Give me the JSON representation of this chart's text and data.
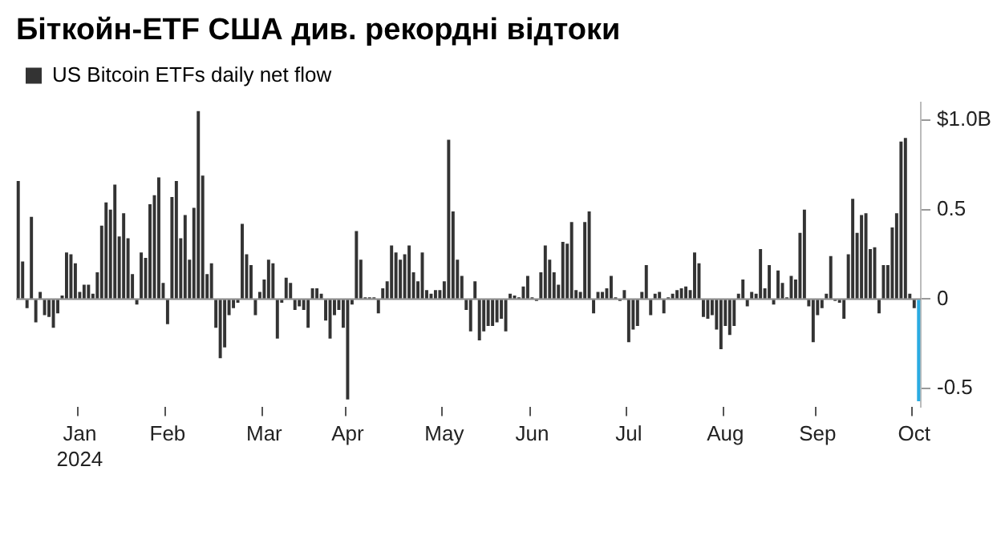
{
  "chart_data": {
    "type": "bar",
    "title": "Біткойн-ETF США див. рекордні відтоки",
    "categories": [
      null,
      null,
      null,
      null,
      null,
      null,
      null,
      null,
      null,
      null,
      null,
      null,
      null,
      null,
      "Jan\n2024",
      null,
      null,
      null,
      null,
      null,
      null,
      null,
      null,
      null,
      null,
      null,
      null,
      null,
      null,
      null,
      null,
      null,
      null,
      null,
      "Feb",
      null,
      null,
      null,
      null,
      null,
      null,
      null,
      null,
      null,
      null,
      null,
      null,
      null,
      null,
      null,
      null,
      null,
      null,
      null,
      null,
      null,
      "Mar",
      null,
      null,
      null,
      null,
      null,
      null,
      null,
      null,
      null,
      null,
      null,
      null,
      null,
      null,
      null,
      null,
      null,
      null,
      "Apr",
      null,
      null,
      null,
      null,
      null,
      null,
      null,
      null,
      null,
      null,
      null,
      null,
      null,
      null,
      null,
      null,
      null,
      null,
      null,
      null,
      null,
      "May",
      null,
      null,
      null,
      null,
      null,
      null,
      null,
      null,
      null,
      null,
      null,
      null,
      null,
      null,
      null,
      null,
      null,
      null,
      null,
      "Jun",
      null,
      null,
      null,
      null,
      null,
      null,
      null,
      null,
      null,
      null,
      null,
      null,
      null,
      null,
      null,
      null,
      null,
      null,
      null,
      null,
      null,
      "Jul",
      null,
      null,
      null,
      null,
      null,
      null,
      null,
      null,
      null,
      null,
      null,
      null,
      null,
      null,
      null,
      null,
      null,
      null,
      null,
      null,
      null,
      "Aug",
      null,
      null,
      null,
      null,
      null,
      null,
      null,
      null,
      null,
      null,
      null,
      null,
      null,
      null,
      null,
      null,
      null,
      null,
      null,
      null,
      "Sep",
      null,
      null,
      null,
      null,
      null,
      null,
      null,
      null,
      null,
      null,
      null,
      null,
      null,
      null,
      null,
      null,
      null,
      null,
      null,
      null,
      null,
      "Oct",
      null
    ],
    "series": [
      {
        "name": "US Bitcoin ETFs daily net flow",
        "color": "#333333",
        "colors": [
          "#333333",
          "#333333",
          "#333333",
          "#333333",
          "#333333",
          "#333333",
          "#333333",
          "#333333",
          "#333333",
          "#333333",
          "#333333",
          "#333333",
          "#333333",
          "#333333",
          "#333333",
          "#333333",
          "#333333",
          "#333333",
          "#333333",
          "#333333",
          "#333333",
          "#333333",
          "#333333",
          "#333333",
          "#333333",
          "#333333",
          "#333333",
          "#333333",
          "#333333",
          "#333333",
          "#333333",
          "#333333",
          "#333333",
          "#333333",
          "#333333",
          "#333333",
          "#333333",
          "#333333",
          "#333333",
          "#333333",
          "#333333",
          "#333333",
          "#333333",
          "#333333",
          "#333333",
          "#333333",
          "#333333",
          "#333333",
          "#333333",
          "#333333",
          "#333333",
          "#333333",
          "#333333",
          "#333333",
          "#333333",
          "#333333",
          "#333333",
          "#333333",
          "#333333",
          "#333333",
          "#333333",
          "#333333",
          "#333333",
          "#333333",
          "#333333",
          "#333333",
          "#333333",
          "#333333",
          "#333333",
          "#333333",
          "#333333",
          "#333333",
          "#333333",
          "#333333",
          "#333333",
          "#333333",
          "#333333",
          "#333333",
          "#333333",
          "#333333",
          "#333333",
          "#333333",
          "#333333",
          "#333333",
          "#333333",
          "#333333",
          "#333333",
          "#333333",
          "#333333",
          "#333333",
          "#333333",
          "#333333",
          "#333333",
          "#333333",
          "#333333",
          "#333333",
          "#333333",
          "#333333",
          "#333333",
          "#333333",
          "#333333",
          "#333333",
          "#333333",
          "#333333",
          "#333333",
          "#333333",
          "#333333",
          "#333333",
          "#333333",
          "#333333",
          "#333333",
          "#333333",
          "#333333",
          "#333333",
          "#333333",
          "#333333",
          "#333333",
          "#333333",
          "#333333",
          "#333333",
          "#333333",
          "#333333",
          "#333333",
          "#333333",
          "#333333",
          "#333333",
          "#333333",
          "#333333",
          "#333333",
          "#333333",
          "#333333",
          "#333333",
          "#333333",
          "#333333",
          "#333333",
          "#333333",
          "#333333",
          "#333333",
          "#333333",
          "#333333",
          "#333333",
          "#333333",
          "#333333",
          "#333333",
          "#333333",
          "#333333",
          "#333333",
          "#333333",
          "#333333",
          "#333333",
          "#333333",
          "#333333",
          "#333333",
          "#333333",
          "#333333",
          "#333333",
          "#333333",
          "#333333",
          "#333333",
          "#333333",
          "#333333",
          "#333333",
          "#333333",
          "#333333",
          "#333333",
          "#333333",
          "#333333",
          "#333333",
          "#333333",
          "#333333",
          "#333333",
          "#333333",
          "#333333",
          "#333333",
          "#333333",
          "#333333",
          "#333333",
          "#333333",
          "#333333",
          "#333333",
          "#333333",
          "#333333",
          "#333333",
          "#333333",
          "#333333",
          "#333333",
          "#333333",
          "#333333",
          "#333333",
          "#333333",
          "#333333",
          "#333333",
          "#333333",
          "#333333",
          "#333333",
          "#333333",
          "#333333",
          "#333333",
          "#333333",
          "#333333",
          "#333333",
          "#333333",
          "#333333",
          "#333333",
          "#333333",
          "#29abe2"
        ],
        "values": [
          0.66,
          0.21,
          -0.05,
          0.46,
          -0.13,
          0.04,
          -0.09,
          -0.1,
          -0.16,
          -0.08,
          0.02,
          0.26,
          0.25,
          0.2,
          0.04,
          0.08,
          0.08,
          0.03,
          0.15,
          0.41,
          0.54,
          0.5,
          0.64,
          0.35,
          0.48,
          0.34,
          0.14,
          -0.03,
          0.26,
          0.23,
          0.53,
          0.58,
          0.68,
          0.09,
          -0.14,
          0.57,
          0.66,
          0.34,
          0.47,
          0.22,
          0.51,
          1.05,
          0.69,
          0.14,
          0.2,
          -0.16,
          -0.33,
          -0.27,
          -0.09,
          -0.05,
          -0.02,
          0.42,
          0.25,
          0.19,
          -0.09,
          0.04,
          0.11,
          0.22,
          0.2,
          -0.22,
          -0.02,
          0.12,
          0.09,
          -0.06,
          -0.04,
          -0.06,
          -0.16,
          0.06,
          0.06,
          0.03,
          -0.12,
          -0.22,
          -0.09,
          -0.06,
          -0.16,
          -0.56,
          -0.03,
          0.38,
          0.22,
          0.01,
          0.01,
          0.01,
          -0.08,
          0.06,
          0.1,
          0.3,
          0.26,
          0.22,
          0.25,
          0.3,
          0.15,
          0.1,
          0.26,
          0.05,
          0.03,
          0.05,
          0.05,
          0.1,
          0.89,
          0.49,
          0.22,
          0.13,
          -0.06,
          -0.18,
          0.1,
          -0.23,
          -0.18,
          -0.15,
          -0.15,
          -0.13,
          -0.11,
          -0.18,
          0.03,
          0.02,
          0.01,
          0.07,
          0.13,
          0.01,
          -0.01,
          0.15,
          0.3,
          0.22,
          0.15,
          0.08,
          0.32,
          0.31,
          0.43,
          0.05,
          0.04,
          0.43,
          0.49,
          -0.08,
          0.04,
          0.04,
          0.06,
          0.13,
          0.01,
          -0.01,
          0.05,
          -0.24,
          -0.17,
          -0.15,
          0.04,
          0.19,
          -0.09,
          0.03,
          0.04,
          -0.08,
          0.01,
          0.03,
          0.05,
          0.06,
          0.07,
          0.05,
          0.26,
          0.2,
          -0.1,
          -0.11,
          -0.09,
          -0.17,
          -0.28,
          -0.15,
          -0.2,
          -0.15,
          0.03,
          0.11,
          -0.04,
          0.04,
          0.03,
          0.28,
          0.06,
          0.19,
          -0.03,
          0.16,
          0.09,
          0.01,
          0.13,
          0.11,
          0.37,
          0.5,
          -0.04,
          -0.24,
          -0.09,
          -0.05,
          0.03,
          0.24,
          -0.01,
          -0.02,
          -0.11,
          0.25,
          0.56,
          0.37,
          0.47,
          0.48,
          0.28,
          0.29,
          -0.08,
          0.19,
          0.19,
          0.4,
          0.48,
          0.88,
          0.9,
          0.03,
          -0.05,
          -0.57
        ]
      }
    ],
    "ylim": [
      -0.6,
      1.1
    ],
    "yticks": [
      {
        "value": 1,
        "label": "$1.0B"
      },
      0.5,
      0,
      -0.5
    ],
    "ref_lines": [
      {
        "axis": "y",
        "value": 0,
        "color": "#888888"
      }
    ],
    "grid": false,
    "legend": "top left"
  }
}
